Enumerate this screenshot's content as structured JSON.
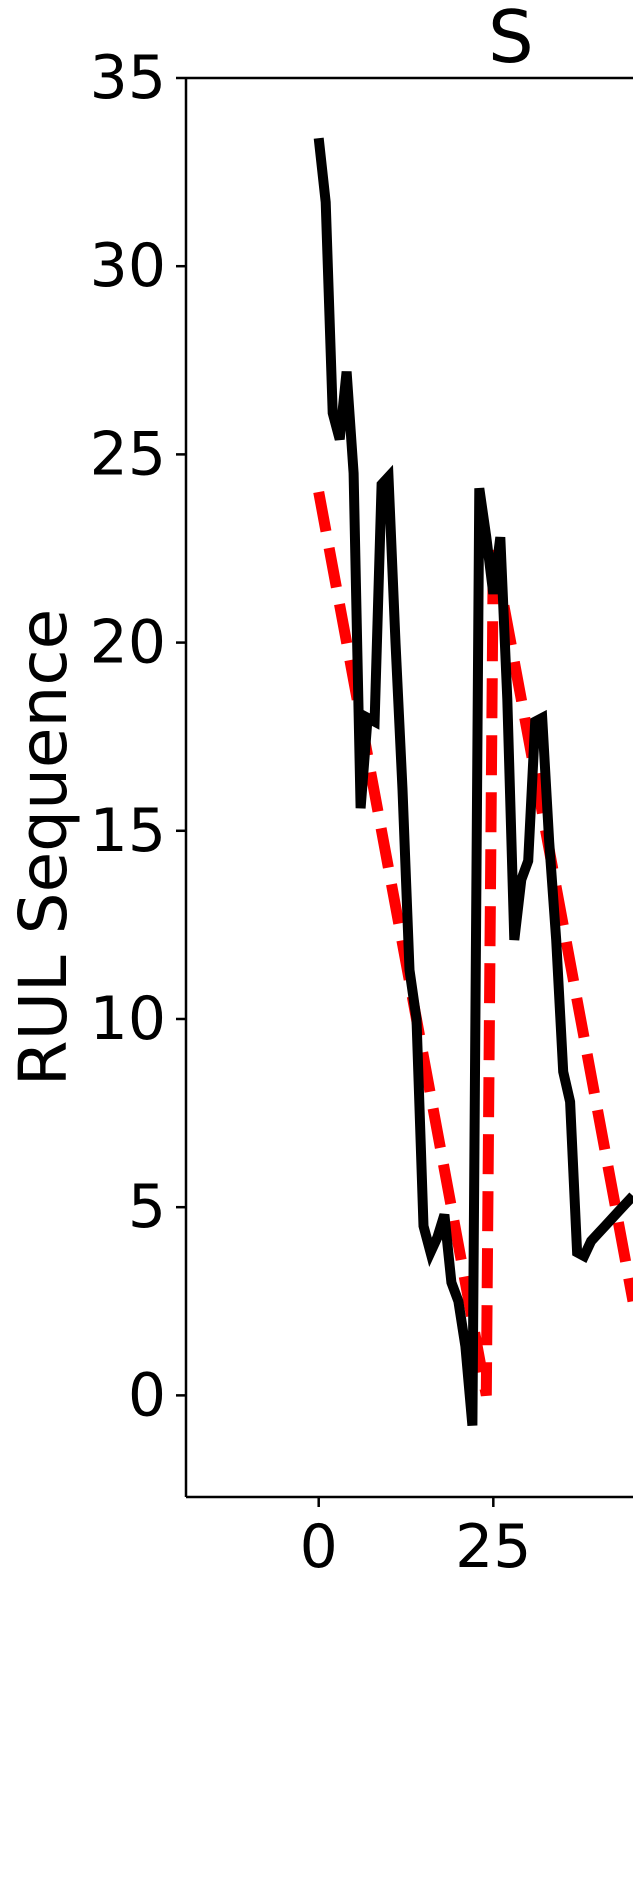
{
  "chart_data": {
    "type": "line",
    "title": "S",
    "xlabel": "",
    "ylabel": "RUL Sequence",
    "xlim": [
      -19,
      45
    ],
    "ylim": [
      -2.7,
      35
    ],
    "x_ticks": [
      0,
      25
    ],
    "x_tick_labels": [
      "0",
      "25"
    ],
    "y_ticks": [
      0,
      5,
      10,
      15,
      20,
      25,
      30,
      35
    ],
    "y_tick_labels": [
      "0",
      "5",
      "10",
      "15",
      "20",
      "25",
      "30",
      "35"
    ],
    "grid": false,
    "series": [
      {
        "role": "predicted",
        "color": "#000000",
        "style": "solid",
        "x": [
          0,
          1,
          2,
          3,
          4,
          5,
          6,
          7,
          8,
          9,
          10,
          11,
          12,
          13,
          14,
          15,
          16,
          17,
          18,
          19,
          20,
          21,
          22,
          23,
          24,
          25,
          26,
          27,
          28,
          29,
          30,
          31,
          32,
          33,
          34,
          35,
          36,
          37,
          38,
          39,
          40,
          41,
          42,
          43,
          44,
          45
        ],
        "y": [
          33.4,
          31.7,
          26.1,
          25.4,
          27.2,
          24.5,
          15.6,
          18.0,
          17.9,
          24.2,
          24.4,
          20.0,
          16.1,
          11.3,
          10.0,
          4.5,
          3.8,
          4.2,
          4.8,
          3.0,
          2.5,
          1.3,
          -0.8,
          24.1,
          22.8,
          21.3,
          22.8,
          18.5,
          12.1,
          13.7,
          14.2,
          17.9,
          18.0,
          14.7,
          12.1,
          8.6,
          7.8,
          3.8,
          3.7,
          4.1,
          4.3,
          4.5,
          4.7,
          4.9,
          5.1,
          5.3
        ]
      },
      {
        "role": "true",
        "color": "#ff0000",
        "style": "dashed",
        "x": [
          0,
          24,
          25,
          45
        ],
        "y": [
          24.0,
          0.0,
          22.5,
          2.5
        ]
      }
    ]
  }
}
